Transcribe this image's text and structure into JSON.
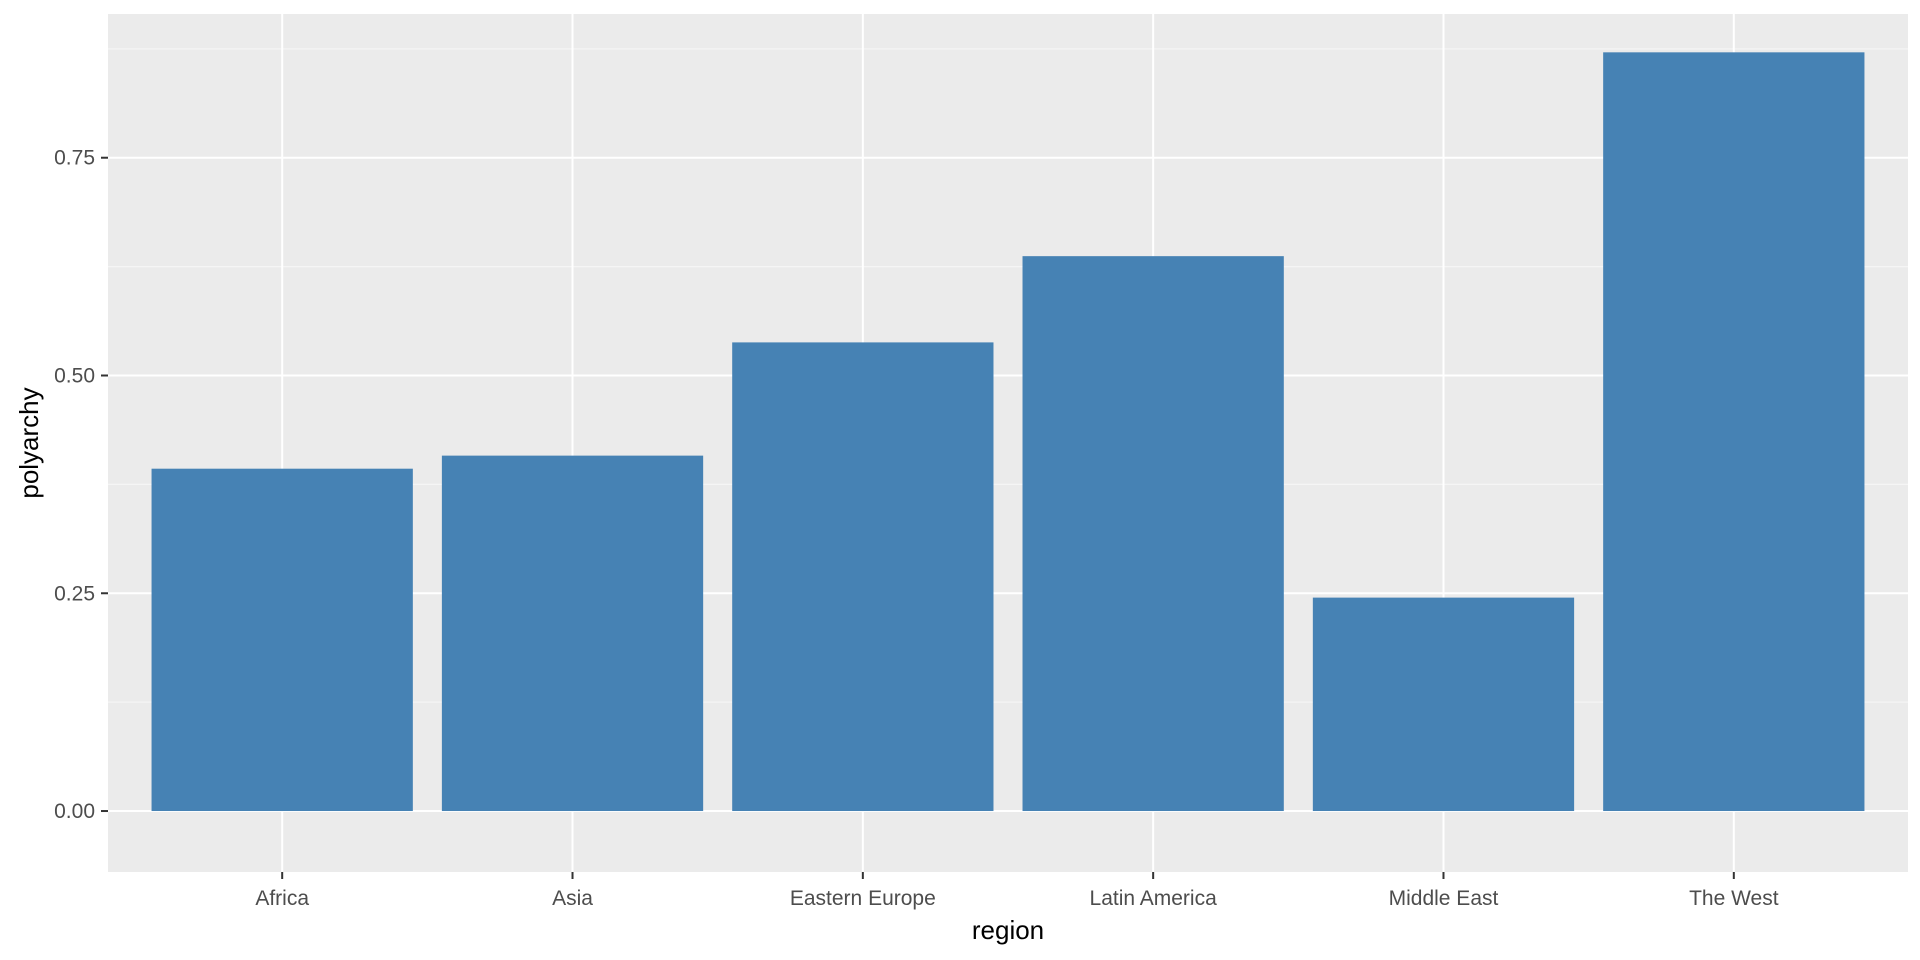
{
  "chart_data": {
    "type": "bar",
    "categories": [
      "Africa",
      "Asia",
      "Eastern Europe",
      "Latin America",
      "Middle East",
      "The West"
    ],
    "values": [
      0.393,
      0.408,
      0.538,
      0.637,
      0.245,
      0.871
    ],
    "xlabel": "region",
    "ylabel": "polyarchy",
    "ylim": [
      -0.07,
      0.915
    ],
    "yticks": [
      0.0,
      0.25,
      0.5,
      0.75
    ],
    "ytick_labels": [
      "0.00",
      "0.25",
      "0.50",
      "0.75"
    ],
    "grid": true,
    "legend": "none",
    "colors": {
      "bar": "#4682B4",
      "panel": "#EBEBEB",
      "grid_major": "#FFFFFF",
      "grid_minor": "#F5F5F5",
      "tick": "#333333"
    }
  }
}
